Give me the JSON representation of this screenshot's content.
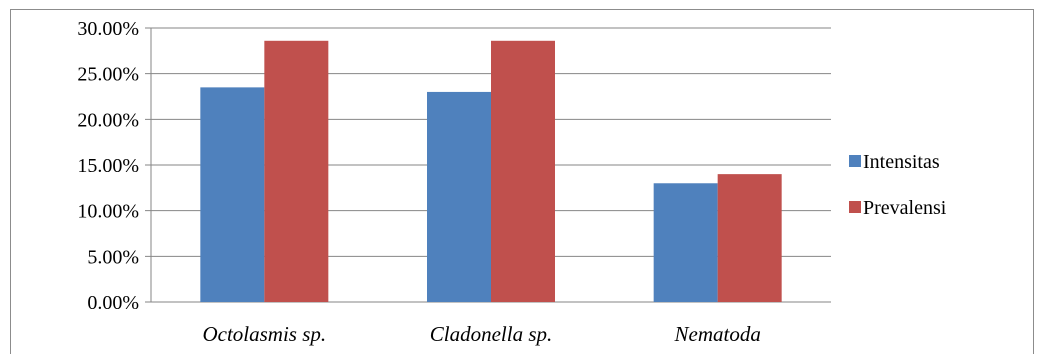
{
  "chart_data": {
    "type": "bar",
    "categories": [
      "Octolasmis sp.",
      "Cladonella sp.",
      "Nematoda"
    ],
    "series": [
      {
        "name": "Intensitas",
        "values": [
          23.5,
          23.0,
          13.0
        ],
        "color": "#4f81bd"
      },
      {
        "name": "Prevalensi",
        "values": [
          28.6,
          28.6,
          14.0
        ],
        "color": "#c0504d"
      }
    ],
    "ylim": [
      0,
      30
    ],
    "yticks": [
      "0.00%",
      "5.00%",
      "10.00%",
      "15.00%",
      "20.00%",
      "25.00%",
      "30.00%"
    ],
    "grid": true,
    "legend_position": "right",
    "title": "",
    "xlabel": "",
    "ylabel": ""
  }
}
